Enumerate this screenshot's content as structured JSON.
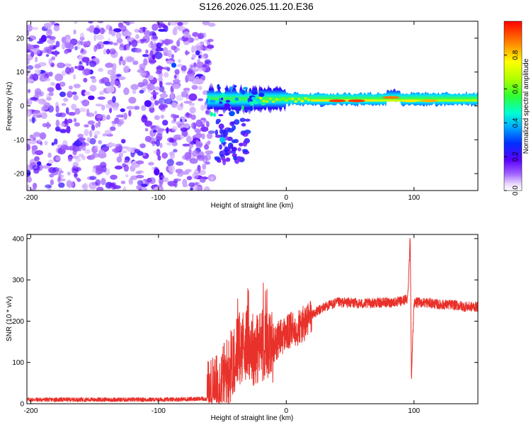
{
  "title": "S126.2026.025.11.20.E36",
  "spectrogram": {
    "type": "heatmap",
    "xlabel": "Height of straight line (km)",
    "ylabel": "Frequency (Hz)",
    "xlim": [
      -203,
      150
    ],
    "ylim": [
      -25,
      25
    ],
    "xticks": [
      -200,
      -100,
      0,
      100
    ],
    "yticks": [
      -20,
      -10,
      0,
      10,
      20
    ],
    "colorbar": {
      "label": "Normalized spectral amplitude",
      "range": [
        0,
        1
      ],
      "ticks": [
        "0.0",
        "0.2",
        "0.4",
        "0.6",
        "0.8"
      ]
    }
  },
  "snr": {
    "type": "line",
    "xlabel": "Height of straight line (km)",
    "ylabel": "SNR (10 * v/v)",
    "xlim": [
      -203,
      150
    ],
    "ylim": [
      0,
      410
    ],
    "xticks": [
      -200,
      -100,
      0,
      100
    ],
    "yticks": [
      0,
      100,
      200,
      300,
      400
    ],
    "color": "#e8312a"
  },
  "chart_data": [
    {
      "type": "heatmap",
      "title": "S126.2026.025.11.20.E36",
      "xlabel": "Height of straight line (km)",
      "ylabel": "Frequency (Hz)",
      "xlim": [
        -203,
        150
      ],
      "ylim": [
        -25,
        25
      ],
      "features": [
        {
          "name": "noise band",
          "x_range": [
            -203,
            -62
          ],
          "f_range": [
            -25,
            25
          ],
          "amplitude": 0.15
        },
        {
          "name": "carrier",
          "x_range": [
            -62,
            150
          ],
          "f_center": 2,
          "peak_amplitude": 0.95
        },
        {
          "name": "sideband",
          "x_range": [
            -55,
            -30
          ],
          "f_range": [
            -17,
            -4
          ],
          "amplitude": 0.3
        }
      ],
      "peaks": [
        [
          40,
          1.5,
          0.95
        ],
        [
          55,
          1.5,
          0.95
        ],
        [
          82,
          2.5,
          0.9
        ],
        [
          97,
          1.5,
          0.8
        ],
        [
          112,
          1.5,
          0.85
        ]
      ]
    },
    {
      "type": "line",
      "xlabel": "Height of straight line (km)",
      "ylabel": "SNR (10 * v/v)",
      "xlim": [
        -203,
        150
      ],
      "ylim": [
        0,
        410
      ],
      "series": [
        {
          "name": "SNR",
          "x": [
            -203,
            -150,
            -100,
            -62,
            -55,
            -45,
            -40,
            -35,
            -30,
            -25,
            -20,
            -15,
            -10,
            -5,
            0,
            5,
            10,
            15,
            20,
            30,
            40,
            50,
            60,
            70,
            80,
            90,
            95,
            97,
            98,
            100,
            110,
            120,
            130,
            140,
            150
          ],
          "values": [
            10,
            10,
            10,
            12,
            30,
            80,
            120,
            140,
            150,
            130,
            140,
            150,
            140,
            160,
            170,
            180,
            185,
            195,
            215,
            235,
            245,
            245,
            242,
            245,
            245,
            248,
            255,
            400,
            65,
            245,
            245,
            240,
            240,
            235,
            235
          ]
        }
      ]
    }
  ]
}
